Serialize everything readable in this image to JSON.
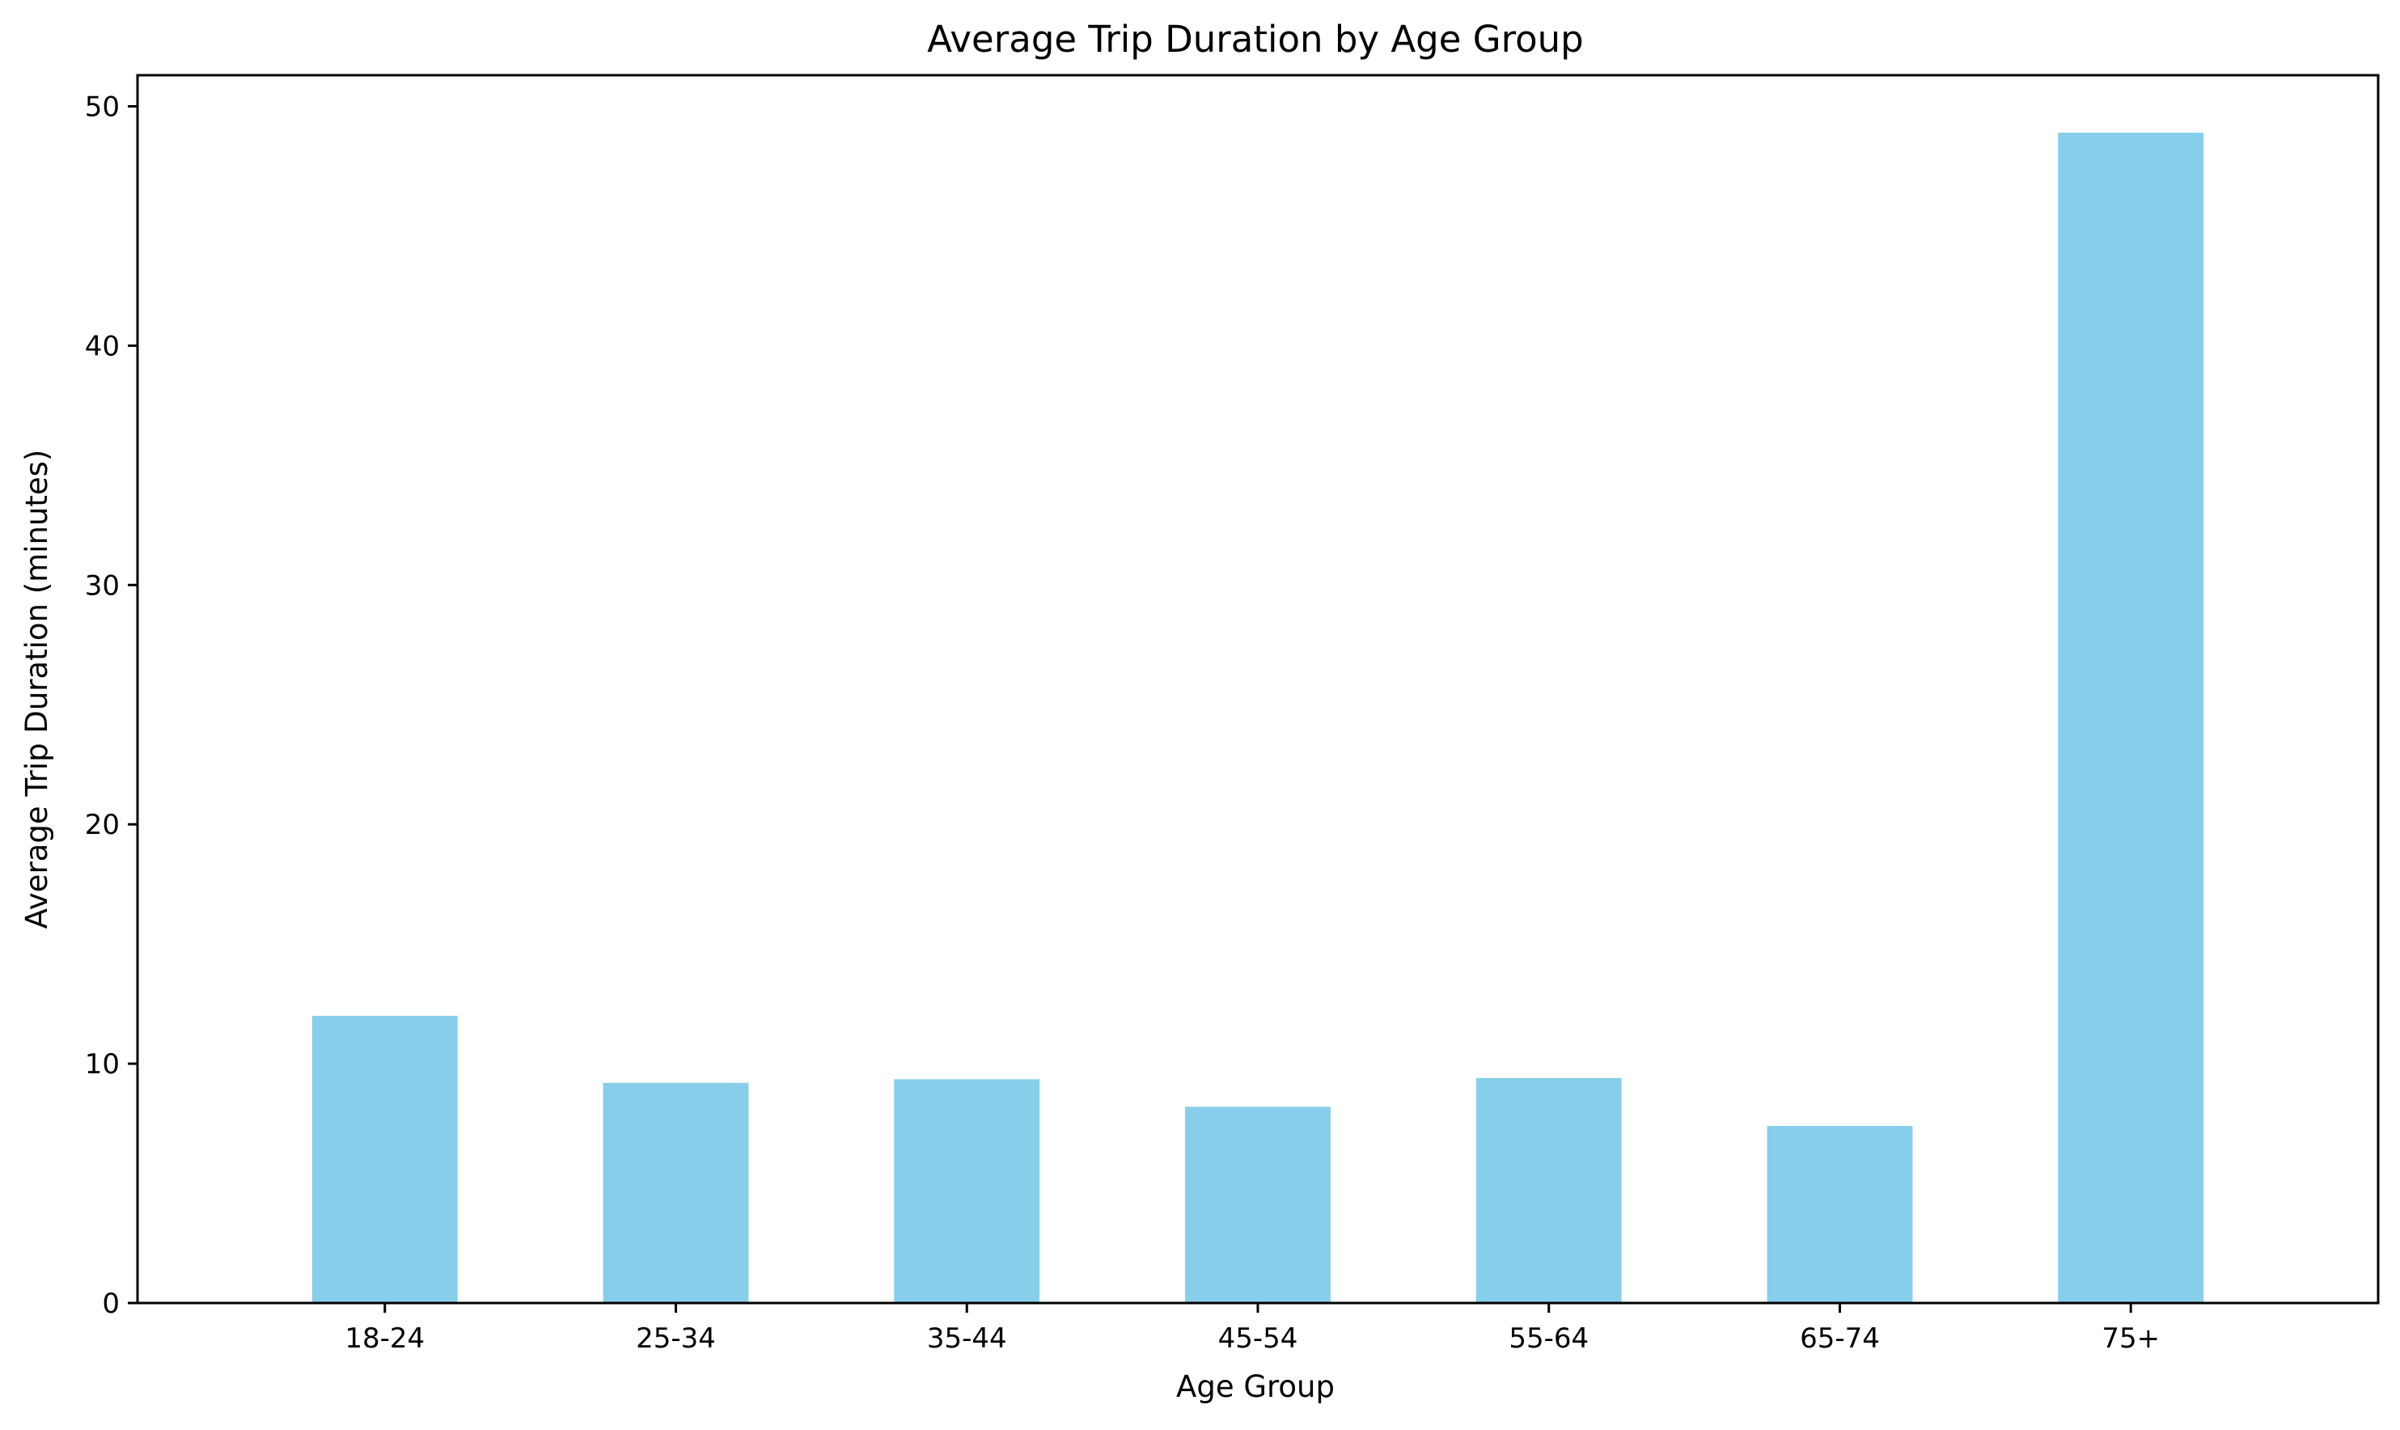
{
  "chart_data": {
    "type": "bar",
    "title": "Average Trip Duration by Age Group",
    "xlabel": "Age Group",
    "ylabel": "Average Trip Duration (minutes)",
    "categories": [
      "18-24",
      "25-34",
      "35-44",
      "45-54",
      "55-64",
      "65-74",
      "75+"
    ],
    "values": [
      12.0,
      9.2,
      9.35,
      8.2,
      9.4,
      7.4,
      48.9
    ],
    "ylim": [
      0,
      51.3
    ],
    "yticks": [
      0,
      10,
      20,
      30,
      40,
      50
    ],
    "grid": false,
    "legend": "none",
    "bar_color": "#87CEEB"
  }
}
